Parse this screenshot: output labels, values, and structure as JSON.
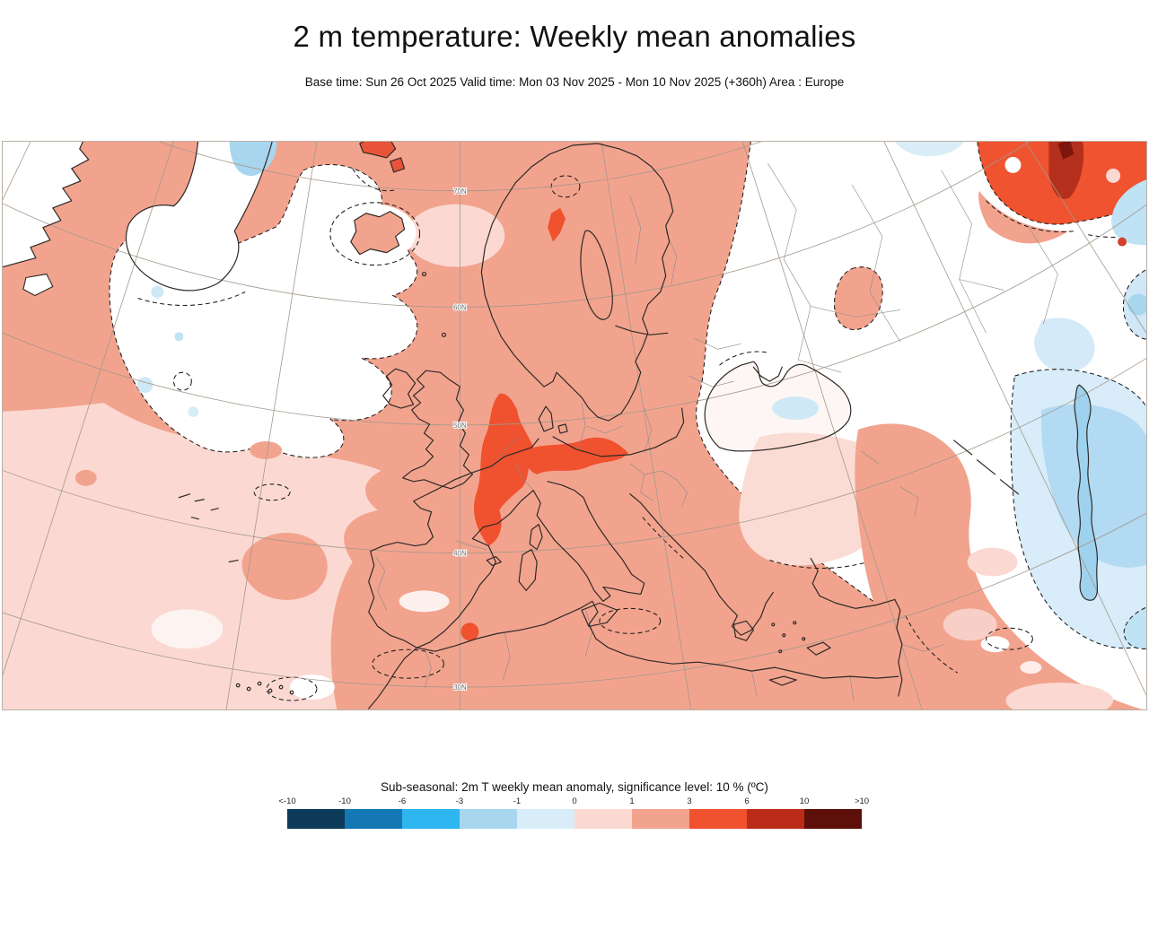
{
  "header": {
    "title": "2 m temperature: Weekly mean anomalies",
    "subtitle": "Base time: Sun 26 Oct 2025 Valid time: Mon 03 Nov 2025 - Mon 10 Nov 2025 (+360h) Area : Europe"
  },
  "map": {
    "graticule_labels": [
      "70N",
      "60N",
      "50N",
      "40N",
      "30N"
    ],
    "palette": {
      "anom_0_1": "#fbd9d2",
      "anom_1_3": "#f2a38e",
      "anom_3_6": "#f0512f",
      "anom_6_10": "#bb2c18",
      "anom_gt_10": "#5d0f09",
      "anom_m1_0": "#d9edf8",
      "anom_m3_m1": "#a9d6ef",
      "neutral": "#ffffff"
    }
  },
  "legend": {
    "caption": "Sub-seasonal: 2m T weekly mean anomaly, significance level: 10 % (ºC)",
    "ticks": [
      "<-10",
      "-10",
      "-6",
      "-3",
      "-1",
      "0",
      "1",
      "3",
      "6",
      "10",
      ">10"
    ],
    "colors": [
      "#0e3a5a",
      "#1478b4",
      "#2db6f0",
      "#a9d6ef",
      "#d9edf8",
      "#fbd9d2",
      "#f2a38e",
      "#f0512f",
      "#bb2c18",
      "#5d0f09"
    ]
  }
}
